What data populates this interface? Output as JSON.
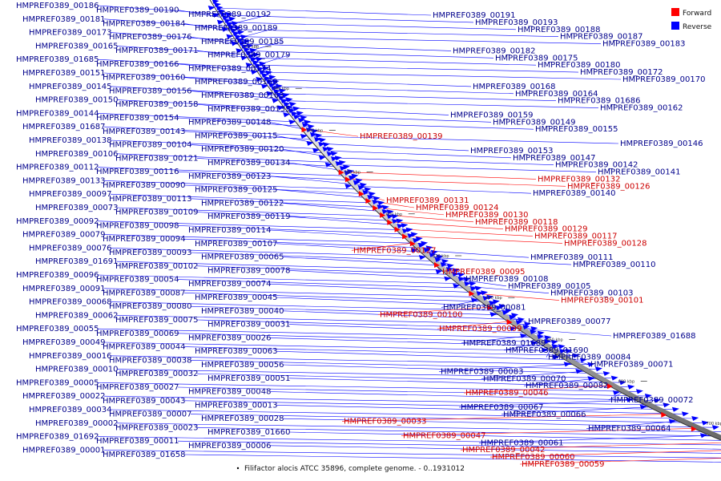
{
  "caption": "Filifactor alocis ATCC 35896, complete genome. - 0..1931012",
  "legend": [
    {
      "label": "Forward",
      "color": "#ff0000"
    },
    {
      "label": "Reverse",
      "color": "#0000ff"
    }
  ],
  "ticks": [
    "520 kbp",
    "540 kbp",
    "560 kbp",
    "580 kbp",
    "600 kbp",
    "620 kbp",
    "640 kbp",
    "660 kbp",
    "680 kbp",
    "700 kbp",
    "720 kbp"
  ],
  "colors": {
    "forward": "#ff0000",
    "reverse": "#0000ff",
    "label_forward": "#cc0000",
    "label_reverse": "#00008b"
  },
  "features": {
    "left": [
      {
        "label": "HMPREF0389_00186",
        "strand": "reverse"
      },
      {
        "label": "HMPREF0389_00190",
        "strand": "reverse"
      },
      {
        "label": "HMPREF0389_00192",
        "strand": "reverse"
      },
      {
        "label": "HMPREF0389_00181",
        "strand": "reverse"
      },
      {
        "label": "HMPREF0389_00184",
        "strand": "reverse"
      },
      {
        "label": "HMPREF0389_00189",
        "strand": "reverse"
      },
      {
        "label": "HMPREF0389_00173",
        "strand": "reverse"
      },
      {
        "label": "HMPREF0389_00176",
        "strand": "reverse"
      },
      {
        "label": "HMPREF0389_00185",
        "strand": "reverse"
      },
      {
        "label": "HMPREF0389_00165",
        "strand": "reverse"
      },
      {
        "label": "HMPREF0389_00171",
        "strand": "reverse"
      },
      {
        "label": "HMPREF0389_00179",
        "strand": "reverse"
      },
      {
        "label": "HMPREF0389_01685",
        "strand": "reverse"
      },
      {
        "label": "HMPREF0389_00166",
        "strand": "reverse"
      },
      {
        "label": "HMPREF0389_00174",
        "strand": "reverse"
      },
      {
        "label": "HMPREF0389_00151",
        "strand": "reverse"
      },
      {
        "label": "HMPREF0389_00160",
        "strand": "reverse"
      },
      {
        "label": "HMPREF0389_00169",
        "strand": "reverse"
      },
      {
        "label": "HMPREF0389_00145",
        "strand": "reverse"
      },
      {
        "label": "HMPREF0389_00156",
        "strand": "reverse"
      },
      {
        "label": "HMPREF0389_00163",
        "strand": "reverse"
      },
      {
        "label": "HMPREF0389_00150",
        "strand": "reverse"
      },
      {
        "label": "HMPREF0389_00158",
        "strand": "reverse"
      },
      {
        "label": "HMPREF0389_00135",
        "strand": "reverse"
      },
      {
        "label": "HMPREF0389_00144",
        "strand": "reverse"
      },
      {
        "label": "HMPREF0389_00154",
        "strand": "reverse"
      },
      {
        "label": "HMPREF0389_00148",
        "strand": "reverse"
      },
      {
        "label": "HMPREF0389_01687",
        "strand": "reverse"
      },
      {
        "label": "HMPREF0389_00143",
        "strand": "reverse"
      },
      {
        "label": "HMPREF0389_00115",
        "strand": "reverse"
      },
      {
        "label": "HMPREF0389_00138",
        "strand": "reverse"
      },
      {
        "label": "HMPREF0389_00104",
        "strand": "reverse"
      },
      {
        "label": "HMPREF0389_00120",
        "strand": "reverse"
      },
      {
        "label": "HMPREF0389_00106",
        "strand": "reverse"
      },
      {
        "label": "HMPREF0389_00121",
        "strand": "reverse"
      },
      {
        "label": "HMPREF0389_00134",
        "strand": "reverse"
      },
      {
        "label": "HMPREF0389_00112",
        "strand": "reverse"
      },
      {
        "label": "HMPREF0389_00116",
        "strand": "reverse"
      },
      {
        "label": "HMPREF0389_00123",
        "strand": "reverse"
      },
      {
        "label": "HMPREF0389_00133",
        "strand": "reverse"
      },
      {
        "label": "HMPREF0389_00090",
        "strand": "reverse"
      },
      {
        "label": "HMPREF0389_00125",
        "strand": "reverse"
      },
      {
        "label": "HMPREF0389_00097",
        "strand": "reverse"
      },
      {
        "label": "HMPREF0389_00113",
        "strand": "reverse"
      },
      {
        "label": "HMPREF0389_00122",
        "strand": "reverse"
      },
      {
        "label": "HMPREF0389_00073",
        "strand": "reverse"
      },
      {
        "label": "HMPREF0389_00109",
        "strand": "reverse"
      },
      {
        "label": "HMPREF0389_00119",
        "strand": "reverse"
      },
      {
        "label": "HMPREF0389_00092",
        "strand": "reverse"
      },
      {
        "label": "HMPREF0389_00098",
        "strand": "reverse"
      },
      {
        "label": "HMPREF0389_00114",
        "strand": "reverse"
      },
      {
        "label": "HMPREF0389_00079",
        "strand": "reverse"
      },
      {
        "label": "HMPREF0389_00094",
        "strand": "reverse"
      },
      {
        "label": "HMPREF0389_00107",
        "strand": "reverse"
      },
      {
        "label": "HMPREF0389_00076",
        "strand": "reverse"
      },
      {
        "label": "HMPREF0389_00093",
        "strand": "reverse"
      },
      {
        "label": "HMPREF0389_00065",
        "strand": "reverse"
      },
      {
        "label": "HMPREF0389_01691",
        "strand": "reverse"
      },
      {
        "label": "HMPREF0389_00102",
        "strand": "reverse"
      },
      {
        "label": "HMPREF0389_00078",
        "strand": "reverse"
      },
      {
        "label": "HMPREF0389_00096",
        "strand": "reverse"
      },
      {
        "label": "HMPREF0389_00054",
        "strand": "reverse"
      },
      {
        "label": "HMPREF0389_00074",
        "strand": "reverse"
      },
      {
        "label": "HMPREF0389_00091",
        "strand": "reverse"
      },
      {
        "label": "HMPREF0389_00087",
        "strand": "reverse"
      },
      {
        "label": "HMPREF0389_00045",
        "strand": "reverse"
      },
      {
        "label": "HMPREF0389_00068",
        "strand": "reverse"
      },
      {
        "label": "HMPREF0389_00080",
        "strand": "reverse"
      },
      {
        "label": "HMPREF0389_00040",
        "strand": "reverse"
      },
      {
        "label": "HMPREF0389_00062",
        "strand": "reverse"
      },
      {
        "label": "HMPREF0389_00075",
        "strand": "reverse"
      },
      {
        "label": "HMPREF0389_00031",
        "strand": "reverse"
      },
      {
        "label": "HMPREF0389_00055",
        "strand": "reverse"
      },
      {
        "label": "HMPREF0389_00069",
        "strand": "reverse"
      },
      {
        "label": "HMPREF0389_00026",
        "strand": "reverse"
      },
      {
        "label": "HMPREF0389_00049",
        "strand": "reverse"
      },
      {
        "label": "HMPREF0389_00044",
        "strand": "reverse"
      },
      {
        "label": "HMPREF0389_00063",
        "strand": "reverse"
      },
      {
        "label": "HMPREF0389_00016",
        "strand": "reverse"
      },
      {
        "label": "HMPREF0389_00038",
        "strand": "reverse"
      },
      {
        "label": "HMPREF0389_00056",
        "strand": "reverse"
      },
      {
        "label": "HMPREF0389_00010",
        "strand": "reverse"
      },
      {
        "label": "HMPREF0389_00032",
        "strand": "reverse"
      },
      {
        "label": "HMPREF0389_00051",
        "strand": "reverse"
      },
      {
        "label": "HMPREF0389_00005",
        "strand": "reverse"
      },
      {
        "label": "HMPREF0389_00027",
        "strand": "reverse"
      },
      {
        "label": "HMPREF0389_00048",
        "strand": "reverse"
      },
      {
        "label": "HMPREF0389_00022",
        "strand": "reverse"
      },
      {
        "label": "HMPREF0389_00043",
        "strand": "reverse"
      },
      {
        "label": "HMPREF0389_00013",
        "strand": "reverse"
      },
      {
        "label": "HMPREF0389_00034",
        "strand": "reverse"
      },
      {
        "label": "HMPREF0389_00007",
        "strand": "reverse"
      },
      {
        "label": "HMPREF0389_00028",
        "strand": "reverse"
      },
      {
        "label": "HMPREF0389_00002",
        "strand": "reverse"
      },
      {
        "label": "HMPREF0389_00023",
        "strand": "reverse"
      },
      {
        "label": "HMPREF0389_01660",
        "strand": "reverse"
      },
      {
        "label": "HMPREF0389_01692",
        "strand": "reverse"
      },
      {
        "label": "HMPREF0389_00011",
        "strand": "reverse"
      },
      {
        "label": "HMPREF0389_00006",
        "strand": "reverse"
      },
      {
        "label": "HMPREF0389_00001",
        "strand": "reverse"
      },
      {
        "label": "HMPREF0389_01658",
        "strand": "reverse"
      }
    ],
    "right": [
      {
        "label": "HMPREF0389_00191",
        "strand": "reverse"
      },
      {
        "label": "HMPREF0389_00193",
        "strand": "reverse"
      },
      {
        "label": "HMPREF0389_00188",
        "strand": "reverse"
      },
      {
        "label": "HMPREF0389_00187",
        "strand": "reverse"
      },
      {
        "label": "HMPREF0389_00183",
        "strand": "reverse"
      },
      {
        "label": "HMPREF0389_00182",
        "strand": "reverse"
      },
      {
        "label": "HMPREF0389_00175",
        "strand": "reverse"
      },
      {
        "label": "HMPREF0389_00180",
        "strand": "reverse"
      },
      {
        "label": "HMPREF0389_00172",
        "strand": "reverse"
      },
      {
        "label": "HMPREF0389_00170",
        "strand": "reverse"
      },
      {
        "label": "HMPREF0389_00168",
        "strand": "reverse"
      },
      {
        "label": "HMPREF0389_00164",
        "strand": "reverse"
      },
      {
        "label": "HMPREF0389_01686",
        "strand": "reverse"
      },
      {
        "label": "HMPREF0389_00162",
        "strand": "reverse"
      },
      {
        "label": "HMPREF0389_00159",
        "strand": "reverse"
      },
      {
        "label": "HMPREF0389_00149",
        "strand": "reverse"
      },
      {
        "label": "HMPREF0389_00155",
        "strand": "reverse"
      },
      {
        "label": "HMPREF0389_00139",
        "strand": "forward"
      },
      {
        "label": "HMPREF0389_00146",
        "strand": "reverse"
      },
      {
        "label": "HMPREF0389_00153",
        "strand": "reverse"
      },
      {
        "label": "HMPREF0389_00147",
        "strand": "reverse"
      },
      {
        "label": "HMPREF0389_00142",
        "strand": "reverse"
      },
      {
        "label": "HMPREF0389_00141",
        "strand": "reverse"
      },
      {
        "label": "HMPREF0389_00132",
        "strand": "forward"
      },
      {
        "label": "HMPREF0389_00126",
        "strand": "forward"
      },
      {
        "label": "HMPREF0389_00140",
        "strand": "reverse"
      },
      {
        "label": "HMPREF0389_00131",
        "strand": "forward"
      },
      {
        "label": "HMPREF0389_00124",
        "strand": "forward"
      },
      {
        "label": "HMPREF0389_00130",
        "strand": "forward"
      },
      {
        "label": "HMPREF0389_00118",
        "strand": "forward"
      },
      {
        "label": "HMPREF0389_00129",
        "strand": "forward"
      },
      {
        "label": "HMPREF0389_00117",
        "strand": "forward"
      },
      {
        "label": "HMPREF0389_00128",
        "strand": "forward"
      },
      {
        "label": "HMPREF0389_00127",
        "strand": "forward"
      },
      {
        "label": "HMPREF0389_00111",
        "strand": "reverse"
      },
      {
        "label": "HMPREF0389_00110",
        "strand": "reverse"
      },
      {
        "label": "HMPREF0389_00095",
        "strand": "forward"
      },
      {
        "label": "HMPREF0389_00108",
        "strand": "reverse"
      },
      {
        "label": "HMPREF0389_00105",
        "strand": "reverse"
      },
      {
        "label": "HMPREF0389_00103",
        "strand": "reverse"
      },
      {
        "label": "HMPREF0389_00101",
        "strand": "forward"
      },
      {
        "label": "HMPREF0389_00081",
        "strand": "reverse"
      },
      {
        "label": "HMPREF0389_00100",
        "strand": "forward"
      },
      {
        "label": "HMPREF0389_00077",
        "strand": "reverse"
      },
      {
        "label": "HMPREF0389_00099",
        "strand": "forward"
      },
      {
        "label": "HMPREF0389_01688",
        "strand": "reverse"
      },
      {
        "label": "HMPREF0389_01689",
        "strand": "reverse"
      },
      {
        "label": "HMPREF0389_01690",
        "strand": "reverse"
      },
      {
        "label": "HMPREF0389_00084",
        "strand": "reverse"
      },
      {
        "label": "HMPREF0389_00071",
        "strand": "reverse"
      },
      {
        "label": "HMPREF0389_00083",
        "strand": "reverse"
      },
      {
        "label": "HMPREF0389_00070",
        "strand": "reverse"
      },
      {
        "label": "HMPREF0389_00082",
        "strand": "reverse"
      },
      {
        "label": "HMPREF0389_00046",
        "strand": "forward"
      },
      {
        "label": "HMPREF0389_00072",
        "strand": "reverse"
      },
      {
        "label": "HMPREF0389_00067",
        "strand": "reverse"
      },
      {
        "label": "HMPREF0389_00066",
        "strand": "reverse"
      },
      {
        "label": "HMPREF0389_00033",
        "strand": "forward"
      },
      {
        "label": "HMPREF0389_00064",
        "strand": "reverse"
      },
      {
        "label": "HMPREF0389_00047",
        "strand": "forward"
      },
      {
        "label": "HMPREF0389_00061",
        "strand": "reverse"
      },
      {
        "label": "HMPREF0389_00042",
        "strand": "forward"
      },
      {
        "label": "HMPREF0389_00060",
        "strand": "forward"
      },
      {
        "label": "HMPREF0389_00059",
        "strand": "forward"
      }
    ]
  }
}
